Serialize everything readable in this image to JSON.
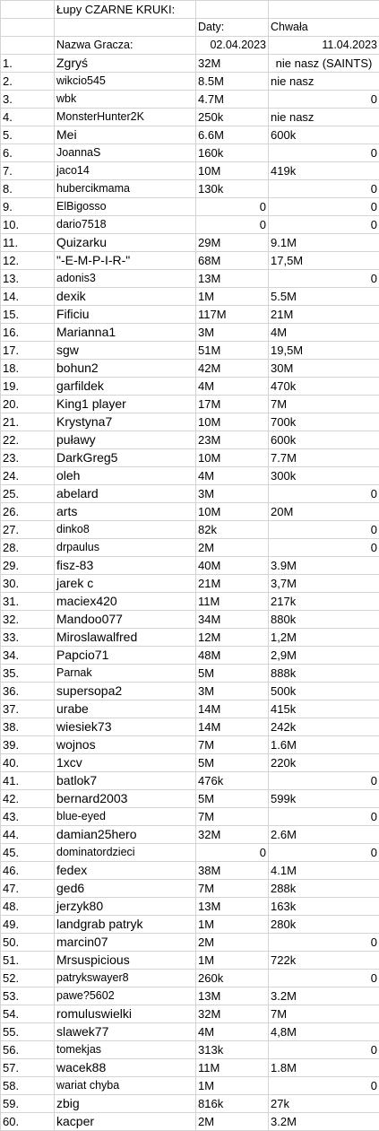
{
  "title": "Łupy CZARNE KRUKI:",
  "header": {
    "dates_label": "Daty:",
    "chwala_label": "Chwała",
    "player_label": "Nazwa Gracza:",
    "date1": "02.04.2023",
    "date2": "11.04.2023"
  },
  "rows": [
    {
      "idx": "1.",
      "name": "Zgryś",
      "a": "32M",
      "b": "nie nasz (SAINTS)"
    },
    {
      "idx": "2.",
      "name": "wikcio545",
      "a": "8.5M",
      "b": "nie nasz"
    },
    {
      "idx": "3.",
      "name": "wbk",
      "a": "4.7M",
      "b": "0"
    },
    {
      "idx": "4.",
      "name": "MonsterHunter2K",
      "a": "250k",
      "b": "nie nasz"
    },
    {
      "idx": "5.",
      "name": "Mei",
      "a": "6.6M",
      "b": "600k"
    },
    {
      "idx": "6.",
      "name": "JoannaS",
      "a": "160k",
      "b": "0"
    },
    {
      "idx": "7.",
      "name": "jaco14",
      "a": "10M",
      "b": "419k"
    },
    {
      "idx": "8.",
      "name": "hubercikmama",
      "a": "130k",
      "b": "0"
    },
    {
      "idx": "9.",
      "name": "ElBigosso",
      "a": "0",
      "b": "0"
    },
    {
      "idx": "10.",
      "name": "dario7518",
      "a": "0",
      "b": "0"
    },
    {
      "idx": "11.",
      "name": "Quizarku",
      "a": "29M",
      "b": "9.1M"
    },
    {
      "idx": "12.",
      "name": "\"-E-M-P-I-R-\"",
      "a": "68M",
      "b": "17,5M"
    },
    {
      "idx": "13.",
      "name": "adonis3",
      "a": "13M",
      "b": "0"
    },
    {
      "idx": "14.",
      "name": "dexik",
      "a": "1M",
      "b": "5.5M"
    },
    {
      "idx": "15.",
      "name": "Fificiu",
      "a": "117M",
      "b": "21M"
    },
    {
      "idx": "16.",
      "name": "Marianna1",
      "a": "3M",
      "b": "4M"
    },
    {
      "idx": "17.",
      "name": "sgw",
      "a": "51M",
      "b": "19,5M"
    },
    {
      "idx": "18.",
      "name": "bohun2",
      "a": "42M",
      "b": "30M"
    },
    {
      "idx": "19.",
      "name": "garfildek",
      "a": "4M",
      "b": "470k"
    },
    {
      "idx": "20.",
      "name": "King1 player",
      "a": "17M",
      "b": "7M"
    },
    {
      "idx": "21.",
      "name": "Krystyna7",
      "a": "10M",
      "b": "700k"
    },
    {
      "idx": "22.",
      "name": "puławy",
      "a": "23M",
      "b": "600k"
    },
    {
      "idx": "23.",
      "name": "DarkGreg5",
      "a": "10M",
      "b": "7.7M"
    },
    {
      "idx": "24.",
      "name": "oleh",
      "a": "4M",
      "b": "300k"
    },
    {
      "idx": "25.",
      "name": "abelard",
      "a": "3M",
      "b": "0"
    },
    {
      "idx": "26.",
      "name": "arts",
      "a": "10M",
      "b": "20M"
    },
    {
      "idx": "27.",
      "name": "dinko8",
      "a": "82k",
      "b": "0"
    },
    {
      "idx": "28.",
      "name": "drpaulus",
      "a": "2M",
      "b": "0"
    },
    {
      "idx": "29.",
      "name": "fisz-83",
      "a": "40M",
      "b": "3.9M"
    },
    {
      "idx": "30.",
      "name": "jarek c",
      "a": "21M",
      "b": "3,7M"
    },
    {
      "idx": "31.",
      "name": "maciex420",
      "a": "11M",
      "b": "217k"
    },
    {
      "idx": "32.",
      "name": "Mandoo077",
      "a": "34M",
      "b": "880k"
    },
    {
      "idx": "33.",
      "name": "Miroslawalfred",
      "a": "12M",
      "b": "1,2M"
    },
    {
      "idx": "34.",
      "name": "Papcio71",
      "a": "48M",
      "b": "2,9M"
    },
    {
      "idx": "35.",
      "name": "Parnak",
      "a": "5M",
      "b": "888k"
    },
    {
      "idx": "36.",
      "name": "supersopa2",
      "a": "3M",
      "b": "500k"
    },
    {
      "idx": "37.",
      "name": "urabe",
      "a": "14M",
      "b": "415k"
    },
    {
      "idx": "38.",
      "name": "wiesiek73",
      "a": "14M",
      "b": "242k"
    },
    {
      "idx": "39.",
      "name": "wojnos",
      "a": "7M",
      "b": "1.6M"
    },
    {
      "idx": "40.",
      "name": "1xcv",
      "a": "5M",
      "b": "220k"
    },
    {
      "idx": "41.",
      "name": "batlok7",
      "a": "476k",
      "b": "0"
    },
    {
      "idx": "42.",
      "name": "bernard2003",
      "a": "5M",
      "b": "599k"
    },
    {
      "idx": "43.",
      "name": "blue-eyed",
      "a": "7M",
      "b": "0"
    },
    {
      "idx": "44.",
      "name": "damian25hero",
      "a": "32M",
      "b": "2.6M"
    },
    {
      "idx": "45.",
      "name": "dominatordzieci",
      "a": "0",
      "b": "0"
    },
    {
      "idx": "46.",
      "name": "fedex",
      "a": "38M",
      "b": "4.1M"
    },
    {
      "idx": "47.",
      "name": "ged6",
      "a": "7M",
      "b": "288k"
    },
    {
      "idx": "48.",
      "name": "jerzyk80",
      "a": "13M",
      "b": "163k"
    },
    {
      "idx": "49.",
      "name": "landgrab patryk",
      "a": "1M",
      "b": "280k"
    },
    {
      "idx": "50.",
      "name": "marcin07",
      "a": "2M",
      "b": "0"
    },
    {
      "idx": "51.",
      "name": "Mrsuspicious",
      "a": "1M",
      "b": "722k"
    },
    {
      "idx": "52.",
      "name": "patrykswayer8",
      "a": "260k",
      "b": "0"
    },
    {
      "idx": "53.",
      "name": "pawe?5602",
      "a": "13M",
      "b": "3.2M"
    },
    {
      "idx": "54.",
      "name": "romuluswielki",
      "a": "32M",
      "b": "7M"
    },
    {
      "idx": "55.",
      "name": "slawek77",
      "a": "4M",
      "b": "4,8M"
    },
    {
      "idx": "56.",
      "name": "tomekjas",
      "a": "313k",
      "b": "0"
    },
    {
      "idx": "57.",
      "name": "wacek88",
      "a": "11M",
      "b": "1.8M"
    },
    {
      "idx": "58.",
      "name": "wariat chyba",
      "a": "1M",
      "b": "0"
    },
    {
      "idx": "59.",
      "name": "zbig",
      "a": "816k",
      "b": "27k"
    },
    {
      "idx": "60.",
      "name": "kacper",
      "a": "2M",
      "b": "3.2M"
    }
  ]
}
